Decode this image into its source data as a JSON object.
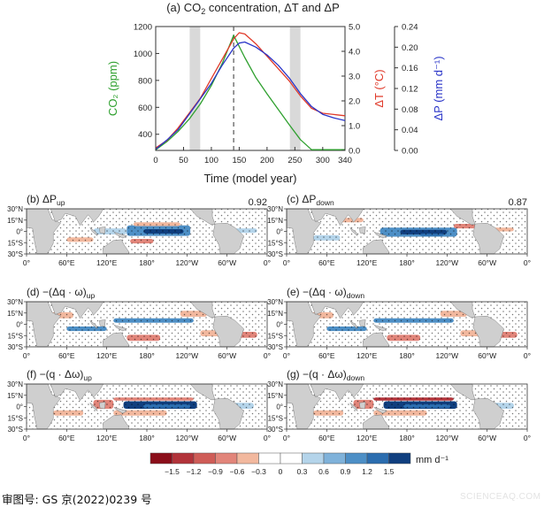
{
  "main_chart": {
    "title_prefix": "(a) CO",
    "title_sub": "2",
    "title_suffix": " concentration, ΔT and ΔP",
    "xlabel": "Time (model year)",
    "x_ticks": [
      "0",
      "50",
      "100",
      "150",
      "200",
      "250",
      "300",
      "340"
    ],
    "co2_axis_label": "CO₂ (ppm)",
    "co2_ticks": [
      "400",
      "600",
      "800",
      "1000",
      "1200"
    ],
    "dT_axis_label": "ΔT (°C)",
    "dT_ticks": [
      "0.0",
      "1.0",
      "2.0",
      "3.0",
      "4.0",
      "5.0"
    ],
    "dP_axis_label": "ΔP (mm d⁻¹)",
    "dP_ticks": [
      "0.00",
      "0.04",
      "0.08",
      "0.12",
      "0.16",
      "0.20",
      "0.24"
    ],
    "colors": {
      "co2": "#2fa02f",
      "dT": "#e03a2a",
      "dP": "#2a35c8",
      "shade": "#d9d9d9"
    }
  },
  "chart_data": {
    "type": "line",
    "x_range": [
      0,
      340
    ],
    "co2_range": [
      280,
      1200
    ],
    "dT_range": [
      0,
      5
    ],
    "dP_range": [
      0,
      0.24
    ],
    "shaded_periods": [
      [
        61,
        80
      ],
      [
        241,
        260
      ]
    ],
    "peak_marker_year": 140,
    "series": [
      {
        "name": "CO₂",
        "axis": "co2",
        "x": [
          0,
          20,
          40,
          60,
          80,
          100,
          120,
          140,
          160,
          180,
          200,
          220,
          240,
          260,
          280,
          300,
          340
        ],
        "values": [
          284,
          345,
          420,
          512,
          625,
          762,
          930,
          1135,
          970,
          820,
          700,
          585,
          470,
          360,
          285,
          285,
          285
        ]
      },
      {
        "name": "ΔT",
        "axis": "dT",
        "x": [
          0,
          20,
          40,
          60,
          80,
          100,
          120,
          140,
          150,
          160,
          180,
          200,
          220,
          240,
          260,
          280,
          300,
          320,
          340
        ],
        "values": [
          0.1,
          0.4,
          0.9,
          1.5,
          2.1,
          2.9,
          3.7,
          4.5,
          4.75,
          4.7,
          4.3,
          3.8,
          3.3,
          2.8,
          2.2,
          1.7,
          1.5,
          1.45,
          1.4
        ]
      },
      {
        "name": "ΔP",
        "axis": "dP",
        "x": [
          0,
          20,
          40,
          60,
          80,
          100,
          120,
          140,
          150,
          160,
          180,
          200,
          220,
          240,
          260,
          280,
          300,
          320,
          340
        ],
        "values": [
          0.002,
          0.02,
          0.04,
          0.07,
          0.1,
          0.13,
          0.166,
          0.198,
          0.208,
          0.21,
          0.2,
          0.185,
          0.165,
          0.14,
          0.11,
          0.085,
          0.07,
          0.063,
          0.058
        ]
      }
    ]
  },
  "panels": [
    {
      "id": "b",
      "label": "(b) ΔP",
      "sub": "up",
      "pattern_corr": "0.92"
    },
    {
      "id": "c",
      "label": "(c) ΔP",
      "sub": "down",
      "pattern_corr": "0.87"
    },
    {
      "id": "d",
      "label": "(d) −(Δq · ω)",
      "sub": "up"
    },
    {
      "id": "e",
      "label": "(e) −(Δq · ω)",
      "sub": "down"
    },
    {
      "id": "f",
      "label": "(f) −(q · Δω)",
      "sub": "up"
    },
    {
      "id": "g",
      "label": "(g) −(q · Δω)",
      "sub": "down"
    }
  ],
  "map_lat_ticks": [
    "30°N",
    "15°N",
    "0°",
    "15°S",
    "30°S"
  ],
  "map_lon_ticks": [
    "0°",
    "60°E",
    "120°E",
    "180°",
    "120°W",
    "60°W",
    "0°"
  ],
  "colorbar": {
    "ticks": [
      "−1.5",
      "−1.2",
      "−0.9",
      "−0.6",
      "−0.3",
      "0",
      "0.3",
      "0.6",
      "0.9",
      "1.2",
      "1.5"
    ],
    "unit": "mm d⁻¹",
    "colors": [
      "#8b0e1a",
      "#b2333a",
      "#cf5c57",
      "#e2857a",
      "#f2b89e",
      "#ffffff",
      "#ffffff",
      "#b4d4ea",
      "#7fb2da",
      "#4d8fc6",
      "#2b6daf",
      "#103f7f"
    ]
  },
  "footer": {
    "approval": "审图号: GS 京(2022)0239 号"
  },
  "watermark": "SCIENCEAQ.COM"
}
